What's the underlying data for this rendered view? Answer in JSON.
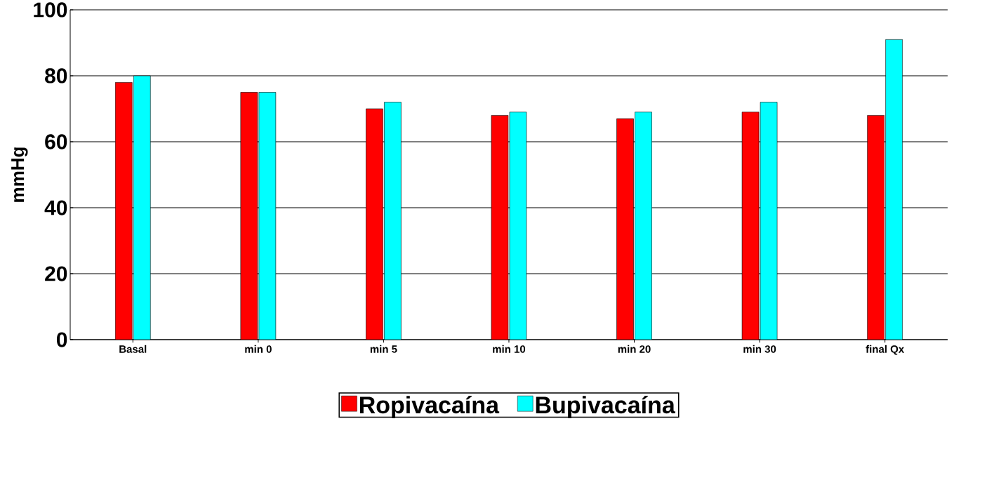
{
  "chart_data": {
    "type": "bar",
    "ylabel": "mmHg",
    "categories": [
      "Basal",
      "min  0",
      "min  5",
      "min 10",
      "min  20",
      "min  30",
      "final Qx"
    ],
    "series": [
      {
        "name": "Ropivacaína",
        "color": "#ff0000",
        "values": [
          78,
          75,
          70,
          68,
          67,
          69,
          68
        ]
      },
      {
        "name": "Bupivacaína",
        "color": "#00ffff",
        "values": [
          80,
          75,
          72,
          69,
          69,
          72,
          91
        ]
      }
    ],
    "ylim": [
      0,
      100
    ],
    "yticks": [
      0,
      20,
      40,
      60,
      80,
      100
    ],
    "grid": "y",
    "legend": "bottom"
  }
}
